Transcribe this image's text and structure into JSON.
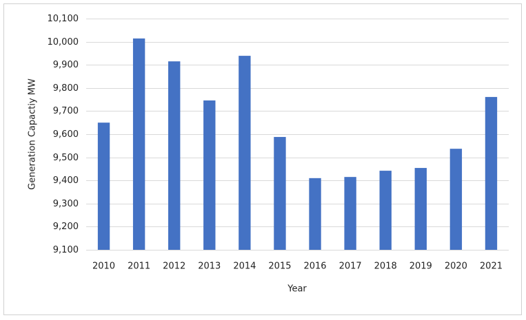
{
  "chart_data": {
    "type": "bar",
    "x_label": "Year",
    "y_label": "Generation Capactiy MW",
    "categories": [
      "2010",
      "2011",
      "2012",
      "2013",
      "2014",
      "2015",
      "2016",
      "2017",
      "2018",
      "2019",
      "2020",
      "2021"
    ],
    "values": [
      9650,
      10014,
      9915,
      9746,
      9939,
      9588,
      9410,
      9415,
      9442,
      9454,
      9537,
      9761
    ],
    "color": "#4472c4",
    "ylim": [
      9100,
      10100
    ],
    "yticks": [
      {
        "value": 9100,
        "label": "9,100"
      },
      {
        "value": 9200,
        "label": "9,200"
      },
      {
        "value": 9300,
        "label": "9,300"
      },
      {
        "value": 9400,
        "label": "9,400"
      },
      {
        "value": 9500,
        "label": "9,500"
      },
      {
        "value": 9600,
        "label": "9,600"
      },
      {
        "value": 9700,
        "label": "9,700"
      },
      {
        "value": 9800,
        "label": "9,800"
      },
      {
        "value": 9900,
        "label": "9,900"
      },
      {
        "value": 10000,
        "label": "10,000"
      },
      {
        "value": 10100,
        "label": "10,100"
      }
    ],
    "grid": true
  }
}
